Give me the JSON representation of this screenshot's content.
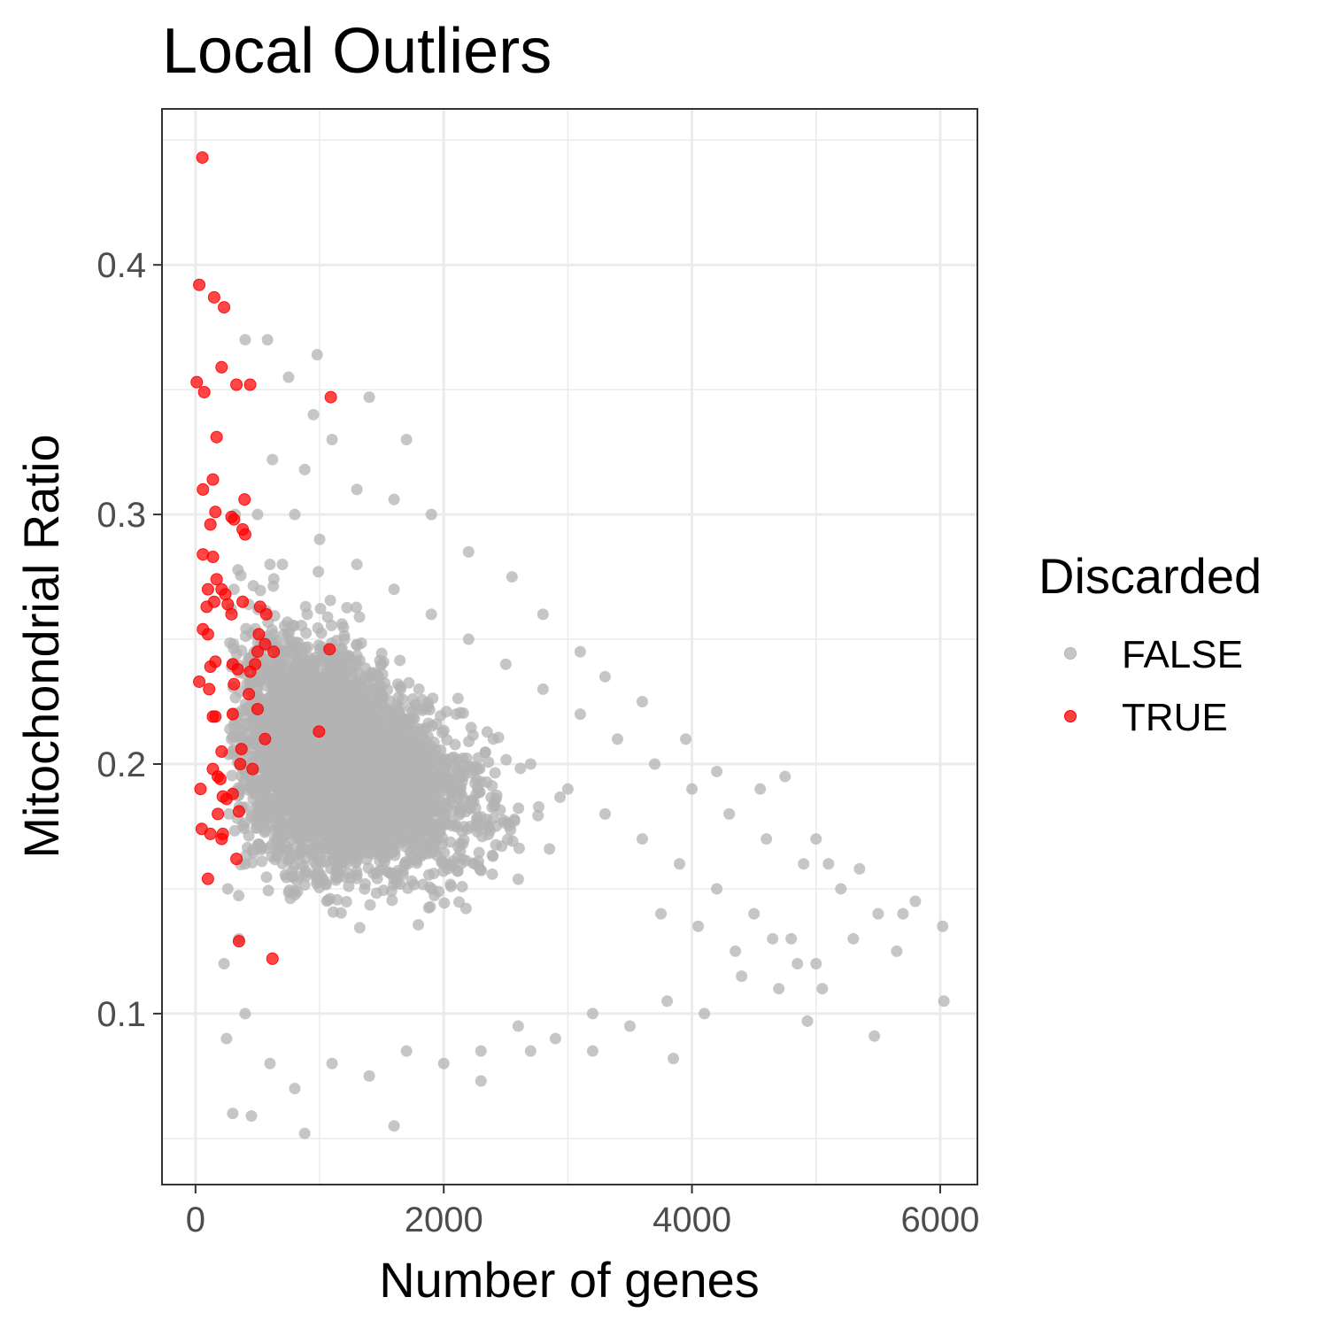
{
  "chart_data": {
    "type": "scatter",
    "title": "Local Outliers",
    "xlabel": "Number of genes",
    "ylabel": "Mitochondrial Ratio",
    "xlim": [
      -270,
      6300
    ],
    "ylim": [
      0.0315,
      0.4625
    ],
    "x_ticks": [
      0,
      2000,
      4000,
      6000
    ],
    "x_tick_labels": [
      "0",
      "2000",
      "4000",
      "6000"
    ],
    "y_ticks": [
      0.1,
      0.2,
      0.3,
      0.4
    ],
    "y_tick_labels": [
      "0.1",
      "0.2",
      "0.3",
      "0.4"
    ],
    "grid": true,
    "legend": {
      "title": "Discarded",
      "position": "right"
    },
    "series": [
      {
        "name": "FALSE",
        "color": "#b3b3b3",
        "note": "dense triangular cloud; representative points",
        "points": [
          [
            400,
            0.37
          ],
          [
            580,
            0.37
          ],
          [
            980,
            0.364
          ],
          [
            750,
            0.355
          ],
          [
            950,
            0.34
          ],
          [
            1100,
            0.33
          ],
          [
            1400,
            0.347
          ],
          [
            1700,
            0.33
          ],
          [
            620,
            0.322
          ],
          [
            880,
            0.318
          ],
          [
            1300,
            0.31
          ],
          [
            1600,
            0.306
          ],
          [
            1900,
            0.3
          ],
          [
            2200,
            0.285
          ],
          [
            2550,
            0.275
          ],
          [
            2800,
            0.26
          ],
          [
            3100,
            0.245
          ],
          [
            3300,
            0.235
          ],
          [
            3600,
            0.225
          ],
          [
            3950,
            0.21
          ],
          [
            4200,
            0.197
          ],
          [
            4550,
            0.19
          ],
          [
            4750,
            0.195
          ],
          [
            5000,
            0.17
          ],
          [
            5100,
            0.16
          ],
          [
            5350,
            0.158
          ],
          [
            5700,
            0.14
          ],
          [
            5800,
            0.145
          ],
          [
            6020,
            0.135
          ],
          [
            6030,
            0.105
          ],
          [
            5470,
            0.091
          ],
          [
            4930,
            0.097
          ],
          [
            3850,
            0.082
          ],
          [
            3200,
            0.085
          ],
          [
            2700,
            0.085
          ],
          [
            2300,
            0.073
          ],
          [
            1600,
            0.055
          ],
          [
            880,
            0.052
          ],
          [
            450,
            0.059
          ],
          [
            300,
            0.06
          ],
          [
            250,
            0.09
          ],
          [
            230,
            0.12
          ],
          [
            260,
            0.15
          ],
          [
            270,
            0.18
          ],
          [
            290,
            0.21
          ],
          [
            300,
            0.24
          ],
          [
            310,
            0.27
          ],
          [
            320,
            0.3
          ],
          [
            500,
            0.3
          ],
          [
            700,
            0.28
          ],
          [
            900,
            0.26
          ],
          [
            1200,
            0.25
          ],
          [
            1500,
            0.24
          ],
          [
            1800,
            0.23
          ],
          [
            2100,
            0.22
          ],
          [
            2400,
            0.21
          ],
          [
            2700,
            0.2
          ],
          [
            3000,
            0.19
          ],
          [
            3300,
            0.18
          ],
          [
            3600,
            0.17
          ],
          [
            3900,
            0.16
          ],
          [
            4200,
            0.15
          ],
          [
            4500,
            0.14
          ],
          [
            4800,
            0.13
          ],
          [
            5000,
            0.12
          ],
          [
            4700,
            0.11
          ],
          [
            4400,
            0.115
          ],
          [
            4100,
            0.1
          ],
          [
            3800,
            0.105
          ],
          [
            3500,
            0.095
          ],
          [
            3200,
            0.1
          ],
          [
            2900,
            0.09
          ],
          [
            2600,
            0.095
          ],
          [
            2300,
            0.085
          ],
          [
            2000,
            0.08
          ],
          [
            1700,
            0.085
          ],
          [
            1400,
            0.075
          ],
          [
            1100,
            0.08
          ],
          [
            800,
            0.07
          ],
          [
            600,
            0.08
          ],
          [
            400,
            0.1
          ],
          [
            350,
            0.13
          ],
          [
            400,
            0.16
          ],
          [
            450,
            0.19
          ],
          [
            500,
            0.22
          ],
          [
            550,
            0.25
          ],
          [
            600,
            0.28
          ],
          [
            800,
            0.3
          ],
          [
            1000,
            0.29
          ],
          [
            1300,
            0.28
          ],
          [
            1600,
            0.27
          ],
          [
            1900,
            0.26
          ],
          [
            2200,
            0.25
          ],
          [
            2500,
            0.24
          ],
          [
            2800,
            0.23
          ],
          [
            3100,
            0.22
          ],
          [
            3400,
            0.21
          ],
          [
            3700,
            0.2
          ],
          [
            4000,
            0.19
          ],
          [
            4300,
            0.18
          ],
          [
            4600,
            0.17
          ],
          [
            4900,
            0.16
          ],
          [
            5200,
            0.15
          ],
          [
            5500,
            0.14
          ],
          [
            5650,
            0.125
          ],
          [
            5300,
            0.13
          ],
          [
            5050,
            0.11
          ],
          [
            4850,
            0.12
          ],
          [
            4650,
            0.13
          ],
          [
            4350,
            0.125
          ],
          [
            4050,
            0.135
          ],
          [
            3750,
            0.14
          ]
        ]
      },
      {
        "name": "TRUE",
        "color": "#ff0000",
        "points": [
          [
            55,
            0.443
          ],
          [
            30,
            0.392
          ],
          [
            150,
            0.387
          ],
          [
            230,
            0.383
          ],
          [
            10,
            0.353
          ],
          [
            70,
            0.349
          ],
          [
            210,
            0.359
          ],
          [
            330,
            0.352
          ],
          [
            440,
            0.352
          ],
          [
            1090,
            0.347
          ],
          [
            170,
            0.331
          ],
          [
            60,
            0.31
          ],
          [
            140,
            0.314
          ],
          [
            395,
            0.306
          ],
          [
            290,
            0.299
          ],
          [
            310,
            0.298
          ],
          [
            160,
            0.301
          ],
          [
            120,
            0.296
          ],
          [
            380,
            0.294
          ],
          [
            400,
            0.292
          ],
          [
            60,
            0.284
          ],
          [
            140,
            0.283
          ],
          [
            240,
            0.268
          ],
          [
            170,
            0.274
          ],
          [
            210,
            0.27
          ],
          [
            100,
            0.27
          ],
          [
            150,
            0.265
          ],
          [
            260,
            0.264
          ],
          [
            290,
            0.26
          ],
          [
            380,
            0.265
          ],
          [
            520,
            0.263
          ],
          [
            570,
            0.26
          ],
          [
            90,
            0.263
          ],
          [
            60,
            0.254
          ],
          [
            100,
            0.252
          ],
          [
            510,
            0.252
          ],
          [
            560,
            0.248
          ],
          [
            630,
            0.245
          ],
          [
            1080,
            0.246
          ],
          [
            160,
            0.241
          ],
          [
            120,
            0.239
          ],
          [
            500,
            0.245
          ],
          [
            440,
            0.237
          ],
          [
            480,
            0.24
          ],
          [
            340,
            0.238
          ],
          [
            300,
            0.24
          ],
          [
            30,
            0.233
          ],
          [
            310,
            0.232
          ],
          [
            110,
            0.23
          ],
          [
            430,
            0.228
          ],
          [
            500,
            0.222
          ],
          [
            300,
            0.22
          ],
          [
            560,
            0.21
          ],
          [
            140,
            0.219
          ],
          [
            160,
            0.219
          ],
          [
            995,
            0.213
          ],
          [
            210,
            0.205
          ],
          [
            370,
            0.206
          ],
          [
            460,
            0.198
          ],
          [
            140,
            0.198
          ],
          [
            360,
            0.2
          ],
          [
            180,
            0.195
          ],
          [
            200,
            0.194
          ],
          [
            40,
            0.19
          ],
          [
            300,
            0.188
          ],
          [
            220,
            0.187
          ],
          [
            250,
            0.186
          ],
          [
            350,
            0.181
          ],
          [
            180,
            0.18
          ],
          [
            50,
            0.174
          ],
          [
            120,
            0.172
          ],
          [
            220,
            0.172
          ],
          [
            210,
            0.17
          ],
          [
            330,
            0.162
          ],
          [
            100,
            0.154
          ],
          [
            350,
            0.129
          ],
          [
            620,
            0.122
          ]
        ]
      }
    ]
  }
}
